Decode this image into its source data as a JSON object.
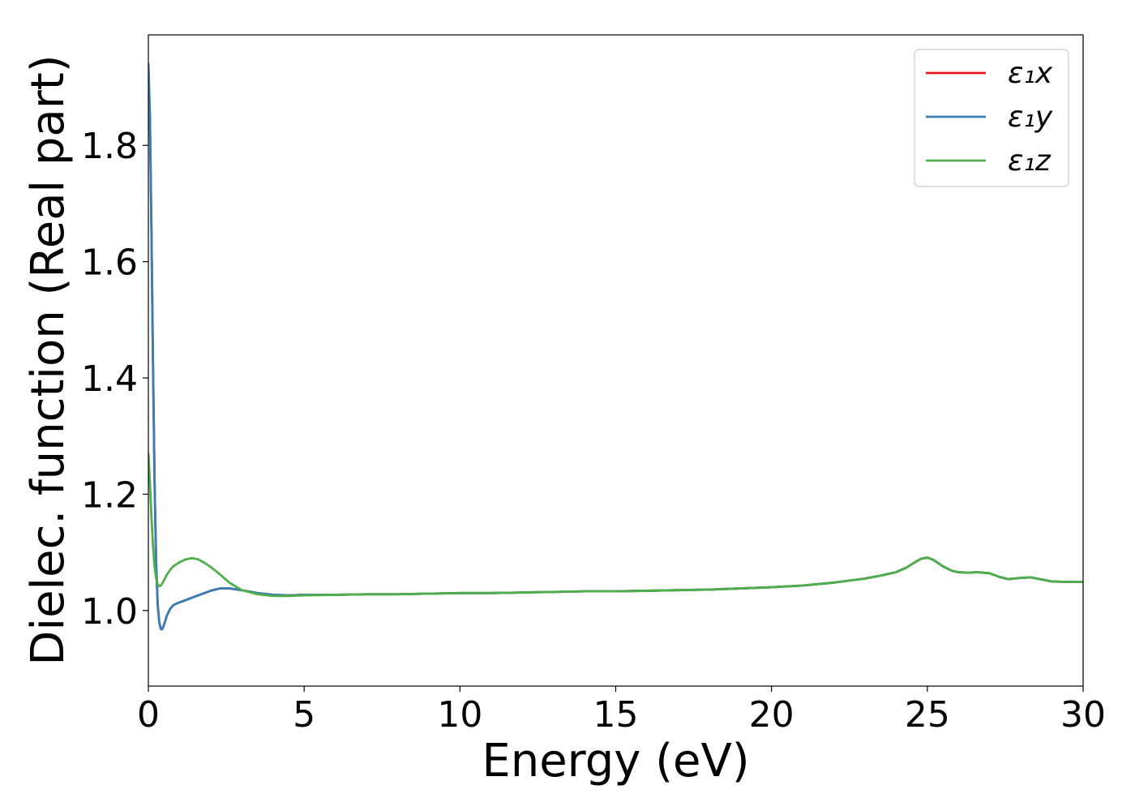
{
  "chart_data": {
    "type": "line",
    "title": "",
    "xlabel": "Energy (eV)",
    "ylabel": "Dielec. function (Real part)",
    "xlim": [
      0,
      30
    ],
    "ylim": [
      0.87,
      1.99
    ],
    "x_ticks": [
      0,
      5,
      10,
      15,
      20,
      25,
      30
    ],
    "y_ticks": [
      1.0,
      1.2,
      1.4,
      1.6,
      1.8
    ],
    "x_tick_labels": [
      "0",
      "5",
      "10",
      "15",
      "20",
      "25",
      "30"
    ],
    "y_tick_labels": [
      "1.0",
      "1.2",
      "1.4",
      "1.6",
      "1.8"
    ],
    "grid": false,
    "legend_position": "top-right",
    "series": [
      {
        "name": "ε₁x",
        "color": "#e41a1c",
        "x": [
          0,
          0.05,
          0.1,
          0.15,
          0.2,
          0.25,
          0.3,
          0.35,
          0.4,
          0.45,
          0.5,
          0.6,
          0.7,
          0.8,
          0.9,
          1.0,
          1.2,
          1.5,
          2.0,
          2.3,
          2.6,
          3.0,
          3.5,
          4.0,
          4.5,
          5,
          6,
          7,
          8,
          9,
          10,
          11,
          12,
          13,
          14,
          15,
          16,
          17,
          18,
          19,
          20,
          21,
          22,
          23,
          23.5,
          24,
          24.3,
          24.6,
          24.8,
          25.0,
          25.2,
          25.5,
          25.8,
          26.0,
          26.3,
          26.6,
          27.0,
          27.3,
          27.6,
          28.0,
          28.3,
          28.7,
          29.0,
          29.5,
          30.0
        ],
        "y": [
          1.94,
          1.85,
          1.65,
          1.42,
          1.22,
          1.08,
          1.01,
          0.98,
          0.968,
          0.968,
          0.975,
          0.992,
          1.003,
          1.009,
          1.012,
          1.014,
          1.018,
          1.024,
          1.034,
          1.038,
          1.038,
          1.035,
          1.03,
          1.027,
          1.026,
          1.027,
          1.027,
          1.028,
          1.028,
          1.029,
          1.03,
          1.03,
          1.031,
          1.032,
          1.033,
          1.033,
          1.034,
          1.035,
          1.036,
          1.038,
          1.04,
          1.043,
          1.048,
          1.055,
          1.06,
          1.066,
          1.073,
          1.083,
          1.089,
          1.091,
          1.087,
          1.076,
          1.068,
          1.066,
          1.065,
          1.066,
          1.064,
          1.058,
          1.054,
          1.056,
          1.057,
          1.053,
          1.05,
          1.049,
          1.049
        ]
      },
      {
        "name": "ε₁y",
        "color": "#377eb8",
        "x": [
          0,
          0.05,
          0.1,
          0.15,
          0.2,
          0.25,
          0.3,
          0.35,
          0.4,
          0.45,
          0.5,
          0.6,
          0.7,
          0.8,
          0.9,
          1.0,
          1.2,
          1.5,
          2.0,
          2.3,
          2.6,
          3.0,
          3.5,
          4.0,
          4.5,
          5,
          6,
          7,
          8,
          9,
          10,
          11,
          12,
          13,
          14,
          15,
          16,
          17,
          18,
          19,
          20,
          21,
          22,
          23,
          23.5,
          24,
          24.3,
          24.6,
          24.8,
          25.0,
          25.2,
          25.5,
          25.8,
          26.0,
          26.3,
          26.6,
          27.0,
          27.3,
          27.6,
          28.0,
          28.3,
          28.7,
          29.0,
          29.5,
          30.0
        ],
        "y": [
          1.94,
          1.85,
          1.65,
          1.42,
          1.22,
          1.08,
          1.01,
          0.98,
          0.968,
          0.968,
          0.975,
          0.992,
          1.003,
          1.009,
          1.012,
          1.014,
          1.018,
          1.024,
          1.034,
          1.038,
          1.038,
          1.035,
          1.03,
          1.027,
          1.026,
          1.027,
          1.027,
          1.028,
          1.028,
          1.029,
          1.03,
          1.03,
          1.031,
          1.032,
          1.033,
          1.033,
          1.034,
          1.035,
          1.036,
          1.038,
          1.04,
          1.043,
          1.048,
          1.055,
          1.06,
          1.066,
          1.073,
          1.083,
          1.089,
          1.091,
          1.087,
          1.076,
          1.068,
          1.066,
          1.065,
          1.066,
          1.064,
          1.058,
          1.054,
          1.056,
          1.057,
          1.053,
          1.05,
          1.049,
          1.049
        ]
      },
      {
        "name": "ε₁z",
        "color": "#4daf4a",
        "x": [
          0,
          0.05,
          0.1,
          0.15,
          0.2,
          0.25,
          0.3,
          0.35,
          0.4,
          0.45,
          0.5,
          0.6,
          0.7,
          0.8,
          1.0,
          1.2,
          1.4,
          1.6,
          1.8,
          2.0,
          2.3,
          2.6,
          3.0,
          3.5,
          4.0,
          4.5,
          5,
          6,
          7,
          8,
          9,
          10,
          11,
          12,
          13,
          14,
          15,
          16,
          17,
          18,
          19,
          20,
          21,
          22,
          23,
          23.5,
          24,
          24.3,
          24.6,
          24.8,
          25.0,
          25.2,
          25.5,
          25.8,
          26.0,
          26.3,
          26.6,
          27.0,
          27.3,
          27.6,
          28.0,
          28.3,
          28.7,
          29.0,
          29.5,
          30.0
        ],
        "y": [
          1.27,
          1.22,
          1.16,
          1.11,
          1.075,
          1.055,
          1.045,
          1.042,
          1.043,
          1.047,
          1.052,
          1.062,
          1.07,
          1.076,
          1.083,
          1.088,
          1.09,
          1.088,
          1.082,
          1.075,
          1.062,
          1.048,
          1.035,
          1.028,
          1.025,
          1.025,
          1.026,
          1.027,
          1.028,
          1.028,
          1.029,
          1.03,
          1.03,
          1.031,
          1.032,
          1.033,
          1.033,
          1.034,
          1.035,
          1.036,
          1.038,
          1.04,
          1.043,
          1.048,
          1.055,
          1.06,
          1.066,
          1.073,
          1.083,
          1.089,
          1.091,
          1.087,
          1.076,
          1.068,
          1.066,
          1.065,
          1.066,
          1.064,
          1.058,
          1.054,
          1.056,
          1.057,
          1.053,
          1.05,
          1.049,
          1.049
        ]
      }
    ]
  }
}
